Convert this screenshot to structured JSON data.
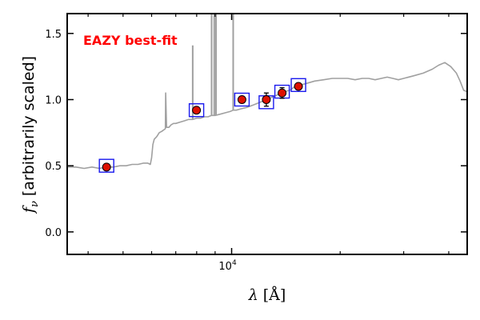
{
  "chart_data": {
    "type": "scatter",
    "annotation": "EAZY best-fit",
    "xlabel": "λ [Å]",
    "ylabel": "f_ν [arbitrarily scaled]",
    "ylabel_main": "[arbitrarily scaled]",
    "ylabel_symbol": "f",
    "ylabel_sub": "ν",
    "xlabel_symbol": "λ",
    "xlabel_unit": "[Å]",
    "x_scale": "log",
    "xlim": [
      3500,
      45000
    ],
    "ylim": [
      -0.17,
      1.65
    ],
    "grid": false,
    "yticks": [
      {
        "value": 0.0,
        "label": "0.0"
      },
      {
        "value": 0.5,
        "label": "0.5"
      },
      {
        "value": 1.0,
        "label": "1.0"
      },
      {
        "value": 1.5,
        "label": "1.5"
      }
    ],
    "xticks_major": [
      {
        "value": 10000,
        "base": "10",
        "exp": "4"
      }
    ],
    "xticks_minor": [
      4000,
      5000,
      6000,
      7000,
      8000,
      9000,
      20000,
      30000,
      40000
    ],
    "colors": {
      "annotation": "#ff0000",
      "model": "#a0a0a0",
      "photometry_fill": "#dd1100",
      "photometry_edge": "#000000",
      "model_box": "#1a1aee"
    },
    "series": [
      {
        "kind": "model_spectrum",
        "x": [
          3500,
          3700,
          3900,
          4100,
          4300,
          4500,
          4700,
          4900,
          5100,
          5300,
          5500,
          5700,
          5850,
          5950,
          6000,
          6050,
          6100,
          6200,
          6300,
          6400,
          6550,
          6563,
          6600,
          6700,
          6800,
          6900,
          7000,
          7200,
          7400,
          7600,
          7800,
          8000,
          8200,
          8400,
          8600,
          8800,
          9000,
          9300,
          9600,
          9900,
          10100,
          10300,
          10600,
          11000,
          11500,
          12000,
          12500,
          13000,
          13500,
          14000,
          14500,
          15000,
          16000,
          17000,
          18000,
          19000,
          20000,
          21000,
          22000,
          23000,
          24000,
          25000,
          26000,
          27000,
          28000,
          29000,
          30000,
          32000,
          34000,
          36000,
          37500,
          39000,
          40500,
          42000,
          43000,
          44000,
          45000
        ],
        "y": [
          0.49,
          0.49,
          0.48,
          0.49,
          0.48,
          0.49,
          0.49,
          0.5,
          0.5,
          0.51,
          0.51,
          0.52,
          0.52,
          0.51,
          0.56,
          0.66,
          0.7,
          0.72,
          0.75,
          0.76,
          0.78,
          1.05,
          0.79,
          0.79,
          0.81,
          0.82,
          0.82,
          0.83,
          0.84,
          0.85,
          0.85,
          0.86,
          0.86,
          0.87,
          0.87,
          0.88,
          0.88,
          0.89,
          0.9,
          0.91,
          0.92,
          0.92,
          0.93,
          0.94,
          0.96,
          0.98,
          1.0,
          1.02,
          1.04,
          1.06,
          1.07,
          1.1,
          1.12,
          1.14,
          1.15,
          1.16,
          1.16,
          1.16,
          1.15,
          1.16,
          1.16,
          1.15,
          1.16,
          1.17,
          1.16,
          1.15,
          1.16,
          1.18,
          1.2,
          1.23,
          1.26,
          1.28,
          1.25,
          1.2,
          1.14,
          1.07,
          1.06
        ]
      },
      {
        "kind": "emission_lines",
        "x": [
          6563,
          7800,
          8800,
          8950,
          9050,
          10100
        ],
        "peak": [
          1.05,
          1.41,
          1.65,
          1.65,
          1.65,
          1.65
        ]
      },
      {
        "kind": "model_boxes",
        "x": [
          4500,
          7990,
          10680,
          12480,
          13800,
          15320
        ],
        "y": [
          0.5,
          0.92,
          1.0,
          0.98,
          1.06,
          1.11
        ]
      },
      {
        "kind": "photometry",
        "x": [
          4500,
          7990,
          10680,
          12480,
          13800,
          15320
        ],
        "y": [
          0.49,
          0.92,
          1.0,
          1.0,
          1.05,
          1.1
        ],
        "yerr": [
          0.02,
          0.02,
          0.02,
          0.05,
          0.04,
          0.02
        ]
      }
    ]
  }
}
